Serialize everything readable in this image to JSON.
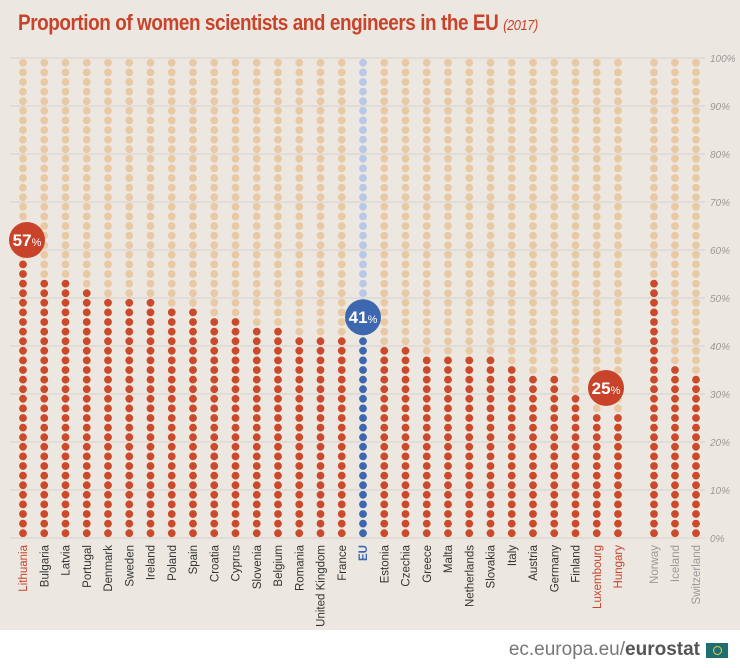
{
  "title": "Proportion of women scientists and engineers in the EU",
  "title_year": "(2017)",
  "footer": {
    "site": "ec.europa.eu/",
    "brand": "eurostat",
    "icon": "eu-flag-icon"
  },
  "colors": {
    "filled": "#cc4a2a",
    "empty": "#e9c9a4",
    "eu_filled": "#3d68b0",
    "eu_empty": "#b8c8e6",
    "highlight_label": "#c8432a",
    "eu_label": "#3d68b0",
    "nonEU_label": "#999999",
    "label": "#333333"
  },
  "chart_data": {
    "type": "dot-column",
    "unit": "%",
    "ylim": [
      0,
      100
    ],
    "yticks": [
      "0%",
      "10%",
      "20%",
      "30%",
      "40%",
      "50%",
      "60%",
      "70%",
      "80%",
      "90%",
      "100%"
    ],
    "grid": true,
    "categories": [
      "Lithuania",
      "Bulgaria",
      "Latvia",
      "Portugal",
      "Denmark",
      "Sweden",
      "Ireland",
      "Poland",
      "Spain",
      "Croatia",
      "Cyprus",
      "Slovenia",
      "Belgium",
      "Romania",
      "United Kingdom",
      "France",
      "EU",
      "Estonia",
      "Czechia",
      "Greece",
      "Malta",
      "Netherlands",
      "Slovakia",
      "Italy",
      "Austria",
      "Germany",
      "Finland",
      "Luxembourg",
      "Hungary",
      "Norway",
      "Iceland",
      "Switzerland"
    ],
    "values": [
      57,
      53,
      53,
      51,
      50,
      49,
      49,
      48,
      48,
      46,
      46,
      43,
      43,
      42,
      41,
      41,
      41,
      39,
      39,
      38,
      38,
      38,
      38,
      35,
      34,
      33,
      29,
      25,
      25,
      54,
      36,
      33
    ],
    "group": [
      "hl",
      "eu",
      "eu",
      "eu",
      "eu",
      "eu",
      "eu",
      "eu",
      "eu",
      "eu",
      "eu",
      "eu",
      "eu",
      "eu",
      "eu",
      "eu",
      "avg",
      "eu",
      "eu",
      "eu",
      "eu",
      "eu",
      "eu",
      "eu",
      "eu",
      "eu",
      "eu",
      "hl",
      "hl",
      "non",
      "non",
      "non"
    ],
    "annotations": [
      {
        "category": "Lithuania",
        "label": "57",
        "suffix": "%"
      },
      {
        "category": "EU",
        "label": "41",
        "suffix": "%"
      },
      {
        "category": "Luxembourg",
        "label": "25",
        "suffix": "%"
      }
    ]
  }
}
